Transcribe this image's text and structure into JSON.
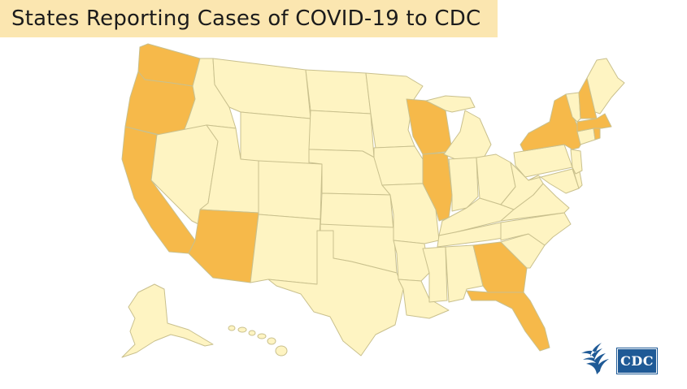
{
  "title": "States Reporting Cases of COVID-19 to CDC",
  "colors": {
    "title_background": "#fbe6b0",
    "reporting": "#f6b94a",
    "not_reporting": "#fef4c2",
    "border": "#c9c08d",
    "cdc_blue": "#1f5a96"
  },
  "reporting_states": [
    "Washington",
    "Oregon",
    "California",
    "Arizona",
    "Wisconsin",
    "Illinois",
    "Georgia",
    "Florida",
    "New York",
    "New Hampshire",
    "Massachusetts",
    "Rhode Island"
  ],
  "logos": {
    "hhs": "hhs-eagle-logo",
    "cdc_text": "CDC"
  }
}
